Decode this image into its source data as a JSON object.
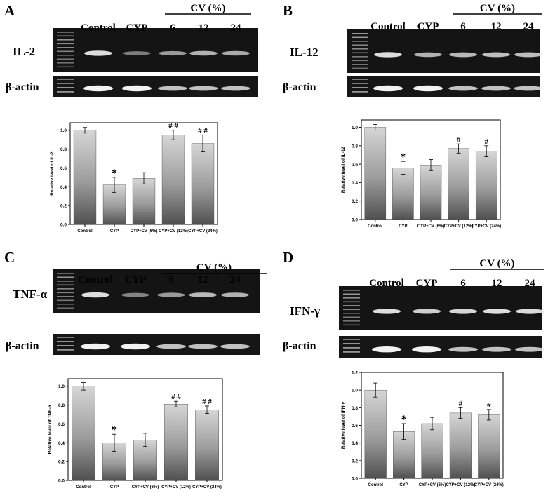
{
  "common": {
    "lane_labels": [
      "Control",
      "CYP",
      "6",
      "12",
      "24"
    ],
    "group_label": "CV  (%)",
    "x_categories": [
      "Control",
      "CYP",
      "CYP+CV (6%)",
      "CYP+CV (12%)",
      "CYP+CV (24%)"
    ],
    "ref_gene": "β-actin"
  },
  "panels": [
    {
      "letter": "A",
      "gene": "IL-2"
    },
    {
      "letter": "B",
      "gene": "IL-12"
    },
    {
      "letter": "C",
      "gene": "TNF-α"
    },
    {
      "letter": "D",
      "gene": "IFN-γ"
    }
  ],
  "chart_data": [
    {
      "type": "bar",
      "categories": [
        "Control",
        "CYP",
        "CYP+CV (6%)",
        "CYP+CV (12%)",
        "CYP+CV (24%)"
      ],
      "values": [
        1.0,
        0.42,
        0.49,
        0.95,
        0.86
      ],
      "errors": [
        0.03,
        0.08,
        0.06,
        0.05,
        0.09
      ],
      "annotations": [
        "",
        "*",
        "",
        "# #",
        "# #"
      ],
      "ylabel": "Relative level of IL-2",
      "ylim": [
        0,
        1.08
      ],
      "yticks": [
        0.0,
        0.2,
        0.4,
        0.6,
        0.8,
        1.0
      ],
      "ytick_labels": [
        "0.0",
        "0.2",
        "0.4",
        "0.6",
        "0.8",
        "1.0"
      ]
    },
    {
      "type": "bar",
      "categories": [
        "Control",
        "CYP",
        "CYP+CV (6%)",
        "CYP+CV (12%)",
        "CYP+CV (24%)"
      ],
      "values": [
        1.0,
        0.56,
        0.59,
        0.77,
        0.74
      ],
      "errors": [
        0.03,
        0.07,
        0.06,
        0.05,
        0.06
      ],
      "annotations": [
        "",
        "*",
        "",
        "#",
        "#"
      ],
      "ylabel": "Relative level of IL-12",
      "ylim": [
        0,
        1.08
      ],
      "yticks": [
        0.0,
        0.2,
        0.4,
        0.6,
        0.8,
        1.0
      ],
      "ytick_labels": [
        "0.0",
        "0.2",
        "0.4",
        "0.6",
        "0.8",
        "1.0"
      ]
    },
    {
      "type": "bar",
      "categories": [
        "Control",
        "CYP",
        "CYP+CV (6%)",
        "CYP+CV (12%)",
        "CYP+CV (24%)"
      ],
      "values": [
        1.0,
        0.4,
        0.43,
        0.81,
        0.75
      ],
      "errors": [
        0.04,
        0.09,
        0.07,
        0.03,
        0.04
      ],
      "annotations": [
        "",
        "*",
        "",
        "# #",
        "# #"
      ],
      "ylabel": "Relative level of TNF-α",
      "ylim": [
        0,
        1.08
      ],
      "yticks": [
        0.0,
        0.2,
        0.4,
        0.6,
        0.8,
        1.0
      ],
      "ytick_labels": [
        "0.0",
        "0.2",
        "0.4",
        "0.6",
        "0.8",
        "1.0"
      ]
    },
    {
      "type": "bar",
      "categories": [
        "Control",
        "CYP",
        "CYP+CV (6%)",
        "CYP+CV (12%)",
        "CYP+CV (24%)"
      ],
      "values": [
        1.0,
        0.53,
        0.62,
        0.74,
        0.72
      ],
      "errors": [
        0.08,
        0.09,
        0.07,
        0.06,
        0.06
      ],
      "annotations": [
        "",
        "*",
        "",
        "#",
        "#"
      ],
      "ylabel": "Relative level of IFN-γ",
      "ylim": [
        0,
        1.2
      ],
      "yticks": [
        0.0,
        0.2,
        0.4,
        0.6,
        0.8,
        1.0,
        1.2
      ],
      "ytick_labels": [
        "0.0",
        "0.2",
        "0.4",
        "0.6",
        "0.8",
        "1.0",
        "1.2"
      ]
    }
  ]
}
